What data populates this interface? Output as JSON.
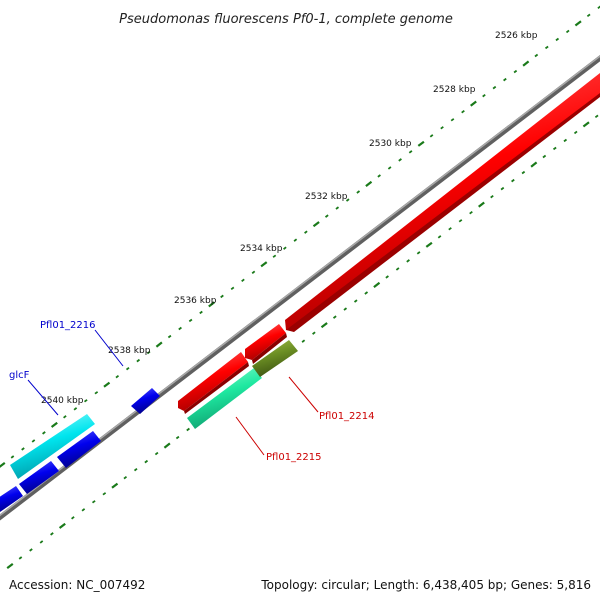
{
  "title": "Pseudomonas fluorescens Pf0-1, complete genome",
  "footer": {
    "accession": "Accession: NC_007492",
    "stats": "Topology: circular; Length: 6,438,405 bp; Genes: 5,816"
  },
  "scale_labels": [
    "2526 kbp",
    "2528 kbp",
    "2530 kbp",
    "2532 kbp",
    "2534 kbp",
    "2536 kbp",
    "2538 kbp",
    "2540 kbp"
  ],
  "gene_labels": [
    {
      "name": "Pfl01_2216",
      "color": "#0000cc"
    },
    {
      "name": "glcF",
      "color": "#0000cc"
    },
    {
      "name": "Pfl01_2214",
      "color": "#cc0000"
    },
    {
      "name": "Pfl01_2215",
      "color": "#cc0000"
    }
  ],
  "colors": {
    "backbone": "#808080",
    "forward_gene": "#ff0000",
    "reverse_gene": "#0000ff",
    "glcF_gene": "#00e5ee",
    "gene_2215": "#1ee8a0",
    "gene_2214": "#6b8e23",
    "tick": "#1a7a1a"
  }
}
